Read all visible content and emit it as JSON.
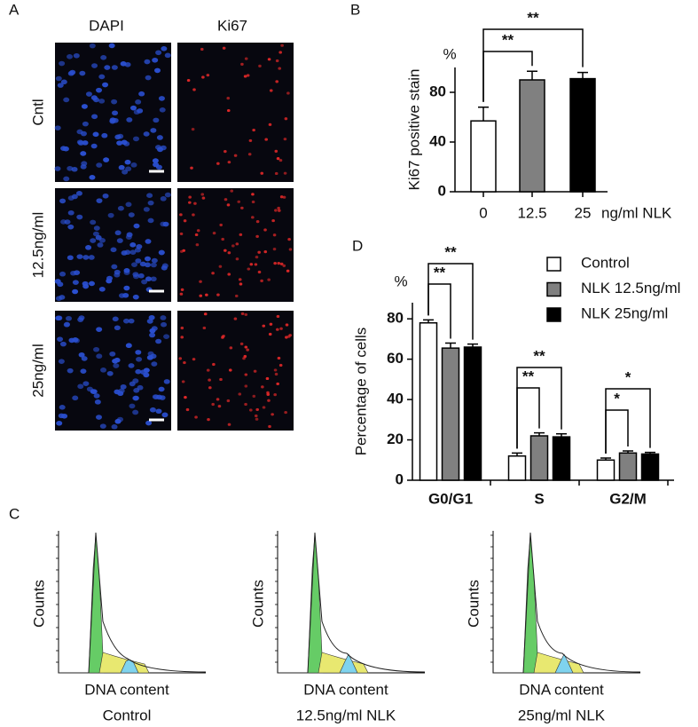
{
  "panel_a": {
    "label": "A",
    "columns": [
      "DAPI",
      "Ki67"
    ],
    "rows": [
      "Cntl",
      "12.5ng/ml",
      "25ng/ml"
    ]
  },
  "chart_data": [
    {
      "type": "bar",
      "panel_label": "B",
      "y_label": "Ki67 positive stain",
      "y_unit": "%",
      "x_unit": "ng/ml NLK",
      "categories": [
        "0",
        "12.5",
        "25"
      ],
      "values": [
        57,
        90,
        91
      ],
      "errors": [
        11,
        7,
        5
      ],
      "colors": [
        "#ffffff",
        "#808080",
        "#000000"
      ],
      "ylim": [
        0,
        100
      ],
      "yticks": [
        0,
        40,
        80
      ],
      "annotations": [
        "**",
        "**"
      ]
    },
    {
      "type": "grouped_bar",
      "panel_label": "D",
      "y_label": "Percentage of cells",
      "y_unit": "%",
      "categories": [
        "G0/G1",
        "S",
        "G2/M"
      ],
      "series": [
        {
          "name": "Control",
          "color": "#ffffff",
          "values": [
            78,
            12,
            10
          ],
          "errors": [
            1.5,
            1.5,
            1
          ]
        },
        {
          "name": "NLK 12.5ng/ml",
          "color": "#808080",
          "values": [
            65.5,
            22,
            13.5
          ],
          "errors": [
            2.5,
            1.5,
            1
          ]
        },
        {
          "name": "NLK 25ng/ml",
          "color": "#000000",
          "values": [
            66,
            21.5,
            13
          ],
          "errors": [
            1.5,
            1.5,
            0.8
          ]
        }
      ],
      "ylim": [
        0,
        88
      ],
      "yticks": [
        0,
        20,
        40,
        60,
        80
      ],
      "legend": "upper right",
      "annotations": [
        "**",
        "**",
        "**",
        "**",
        "*",
        "*"
      ]
    }
  ],
  "panel_c": {
    "label": "C",
    "y_label": "Counts",
    "x_label": "DNA content",
    "captions": [
      "Control",
      "12.5ng/ml NLK",
      "25ng/ml NLK"
    ]
  }
}
